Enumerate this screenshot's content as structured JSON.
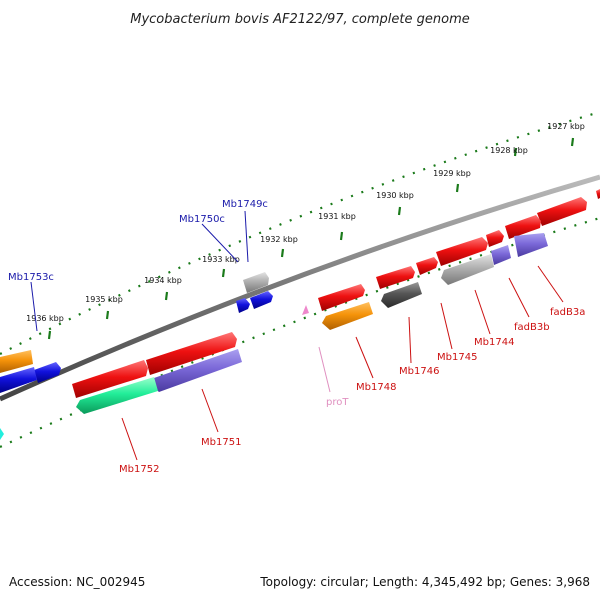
{
  "title": "Mycobacterium bovis AF2122/97, complete genome",
  "footer": {
    "accession": "Accession: NC_002945",
    "summary": "Topology: circular; Length: 4,345,492 bp; Genes: 3,968"
  },
  "ticks": [
    "1927 kbp",
    "1928 kbp",
    "1929 kbp",
    "1930 kbp",
    "1931 kbp",
    "1932 kbp",
    "1933 kbp",
    "1934 kbp",
    "1935 kbp",
    "1936 kbp"
  ],
  "gene_labels": [
    "Mb1753c",
    "Mb1750c",
    "Mb1749c",
    "Mb1752",
    "Mb1751",
    "Mb1748",
    "proT",
    "Mb1746",
    "Mb1745",
    "Mb1744",
    "fadB3b",
    "fadB3a"
  ],
  "colors": {
    "backbone": "#7a7a7a",
    "tick_ring": "#1a7a1a",
    "red": "#ee1111",
    "blue": "#1111dd",
    "orange": "#f5930a",
    "purple": "#7b68d8",
    "gray": "#a8a8a8",
    "dark_gray": "#555555",
    "green": "#22ee99",
    "pink": "#ee88cc",
    "label_blue": "#1a1aaa",
    "label_red": "#cc1111",
    "label_pink": "#e090c0"
  }
}
